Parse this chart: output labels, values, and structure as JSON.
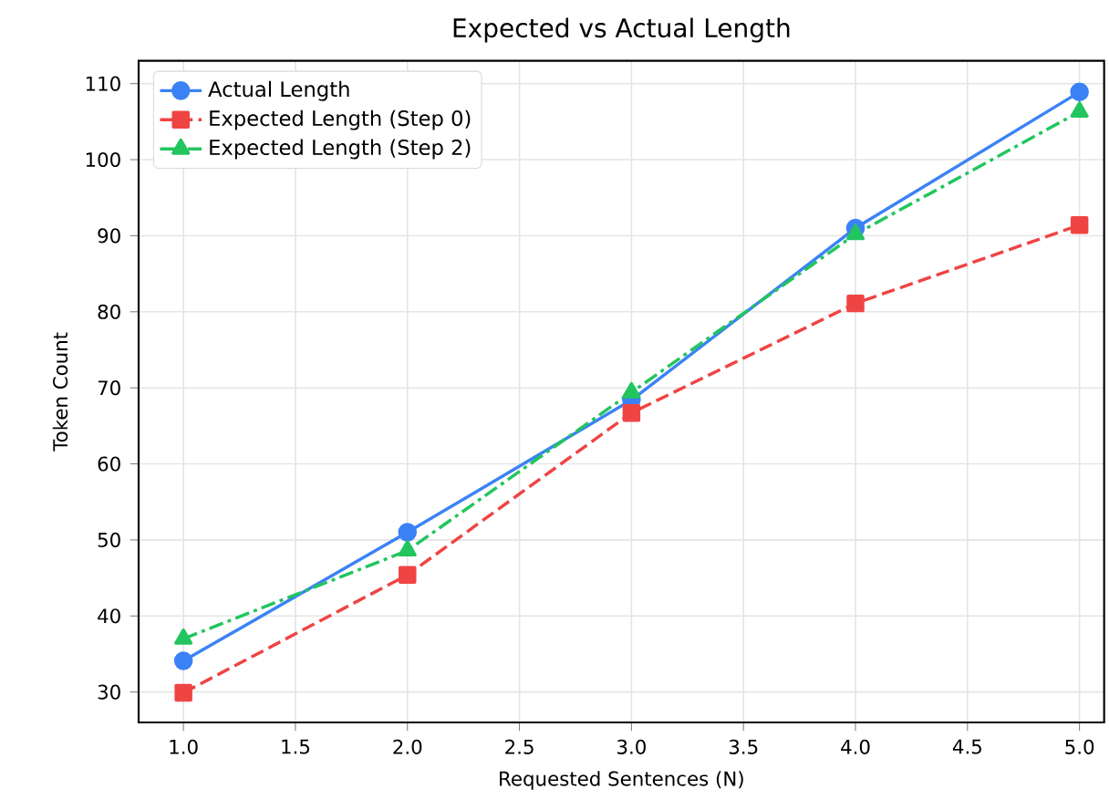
{
  "chart_data": {
    "type": "line",
    "title": "Expected vs Actual Length",
    "xlabel": "Requested Sentences (N)",
    "ylabel": "Token Count",
    "x": [
      1,
      2,
      3,
      4,
      5
    ],
    "series": [
      {
        "name": "Actual Length",
        "color": "#3b82f6",
        "values": [
          34.1,
          51.0,
          68.4,
          91.0,
          108.9
        ],
        "marker": "circle",
        "line_style": "solid"
      },
      {
        "name": "Expected Length (Step 0)",
        "color": "#ef4444",
        "values": [
          29.9,
          45.4,
          66.7,
          81.1,
          91.4
        ],
        "marker": "square",
        "line_style": "dashed"
      },
      {
        "name": "Expected Length (Step 2)",
        "color": "#22c55e",
        "values": [
          37.0,
          48.6,
          69.4,
          90.2,
          106.3
        ],
        "marker": "triangle",
        "line_style": "dashdot"
      }
    ],
    "xlim": [
      0.8,
      5.11
    ],
    "ylim": [
      26,
      113
    ],
    "xticks": [
      {
        "value": 1,
        "label": "1.0"
      },
      {
        "value": 1.5,
        "label": "1.5"
      },
      {
        "value": 2,
        "label": "2.0"
      },
      {
        "value": 2.5,
        "label": "2.5"
      },
      {
        "value": 3,
        "label": "3.0"
      },
      {
        "value": 3.5,
        "label": "3.5"
      },
      {
        "value": 4,
        "label": "4.0"
      },
      {
        "value": 4.5,
        "label": "4.5"
      },
      {
        "value": 5,
        "label": "5.0"
      }
    ],
    "yticks": [
      30,
      40,
      50,
      60,
      70,
      80,
      90,
      100,
      110
    ],
    "grid": true,
    "legend": "top left"
  }
}
